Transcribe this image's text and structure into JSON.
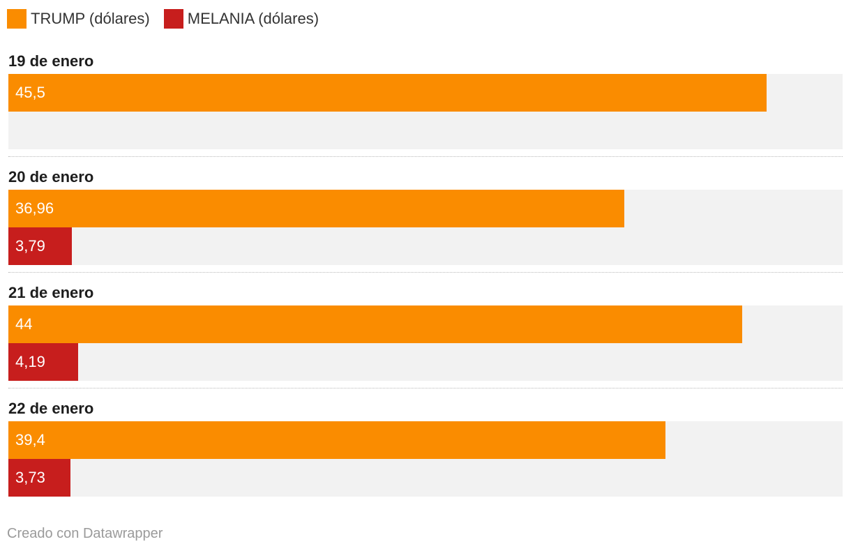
{
  "chart_data": {
    "type": "bar",
    "orientation": "horizontal",
    "categories": [
      "19 de enero",
      "20 de enero",
      "21 de enero",
      "22 de enero"
    ],
    "series": [
      {
        "name": "TRUMP (dólares)",
        "color": "#fa8c00",
        "values": [
          45.5,
          36.96,
          44,
          39.4
        ],
        "labels": [
          "45,5",
          "36,96",
          "44",
          "39,4"
        ]
      },
      {
        "name": "MELANIA (dólares)",
        "color": "#c71e1d",
        "values": [
          null,
          3.79,
          4.19,
          3.73
        ],
        "labels": [
          "",
          "3,79",
          "4,19",
          "3,73"
        ]
      }
    ],
    "xlim": [
      0,
      50
    ],
    "grid": false,
    "legend_position": "top-left"
  },
  "footer": {
    "credit": "Creado con Datawrapper"
  },
  "colors": {
    "track": "#f2f2f2",
    "separator": "#b9b9b9"
  }
}
